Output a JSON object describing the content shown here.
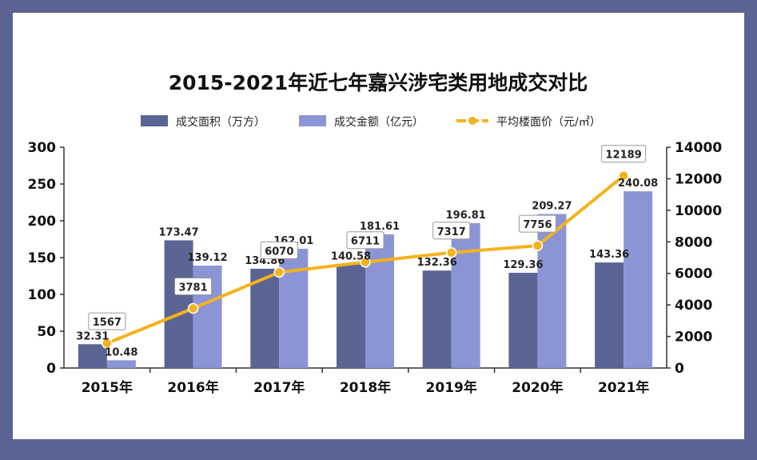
{
  "chart_data": {
    "type": "bar",
    "title": "2015-2021年近七年嘉兴涉宅类用地成交对比",
    "categories": [
      "2015年",
      "2016年",
      "2017年",
      "2018年",
      "2019年",
      "2020年",
      "2021年"
    ],
    "series": [
      {
        "name": "成交面积（万方）",
        "type": "bar",
        "axis": "left",
        "color": "#5b6594",
        "values": [
          32.31,
          173.47,
          134.86,
          140.58,
          132.36,
          129.36,
          143.36
        ]
      },
      {
        "name": "成交金额（亿元）",
        "type": "bar",
        "axis": "left",
        "color": "#8b95d6",
        "values": [
          10.48,
          139.12,
          162.01,
          181.61,
          196.81,
          209.27,
          240.08
        ]
      },
      {
        "name": "平均楼面价（元/㎡）",
        "type": "line",
        "axis": "right",
        "color": "#f5b21c",
        "values": [
          1567,
          3781,
          6070,
          6711,
          7317,
          7756,
          12189
        ]
      }
    ],
    "y_left": {
      "min": 0,
      "max": 300,
      "ticks": [
        0,
        50,
        100,
        150,
        200,
        250,
        300
      ]
    },
    "y_right": {
      "min": 0,
      "max": 14000,
      "ticks": [
        0,
        2000,
        4000,
        6000,
        8000,
        10000,
        12000,
        14000
      ]
    },
    "legend_position": "top",
    "grid": false
  }
}
